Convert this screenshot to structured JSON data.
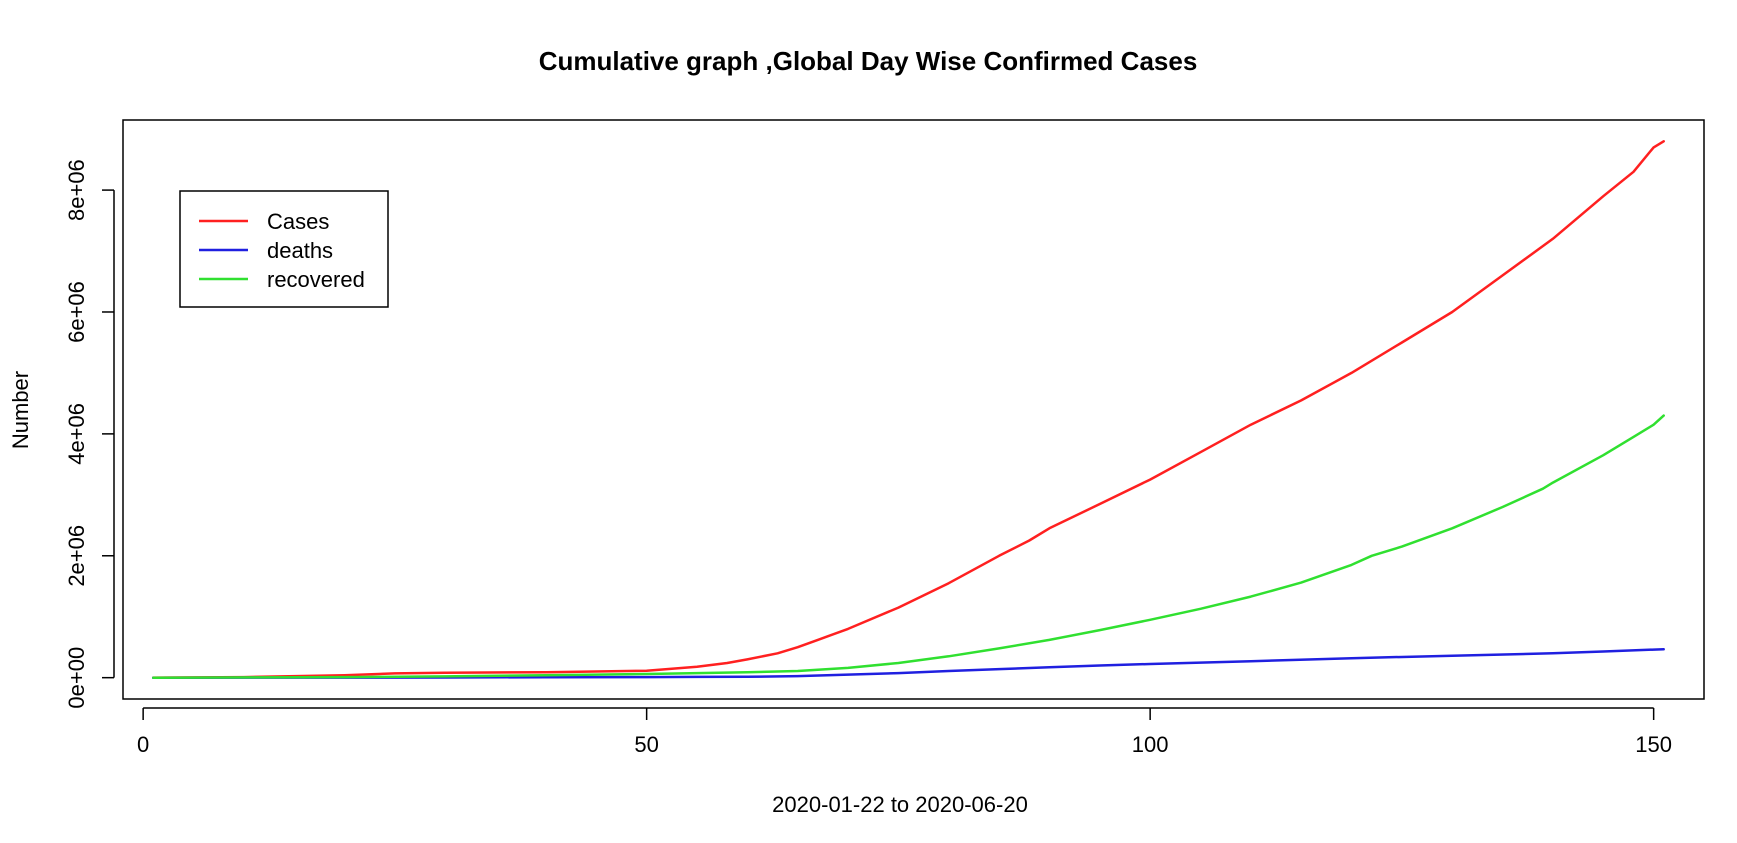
{
  "chart_data": {
    "type": "line",
    "title": "Cumulative graph ,Global Day Wise Confirmed Cases",
    "xlabel": "2020-01-22  to 2020-06-20",
    "ylabel": "Number",
    "xlim": [
      -2,
      155
    ],
    "ylim": [
      -350000,
      9150000
    ],
    "x_ticks": [
      0,
      50,
      100,
      150
    ],
    "x_tick_labels": [
      "0",
      "50",
      "100",
      "150"
    ],
    "y_ticks": [
      0,
      2000000,
      4000000,
      6000000,
      8000000
    ],
    "y_tick_labels": [
      "0e+00",
      "2e+06",
      "4e+06",
      "6e+06",
      "8e+06"
    ],
    "legend_position": "top-left",
    "grid": false,
    "series": [
      {
        "name": "Cases",
        "color": "#ff2020",
        "points": [
          [
            1,
            600
          ],
          [
            10,
            10000
          ],
          [
            20,
            40000
          ],
          [
            25,
            70000
          ],
          [
            30,
            80000
          ],
          [
            40,
            90000
          ],
          [
            50,
            115000
          ],
          [
            55,
            180000
          ],
          [
            58,
            240000
          ],
          [
            60,
            300000
          ],
          [
            63,
            400000
          ],
          [
            65,
            500000
          ],
          [
            67,
            620000
          ],
          [
            70,
            800000
          ],
          [
            75,
            1150000
          ],
          [
            80,
            1550000
          ],
          [
            85,
            2000000
          ],
          [
            88,
            2250000
          ],
          [
            90,
            2450000
          ],
          [
            95,
            2850000
          ],
          [
            100,
            3250000
          ],
          [
            105,
            3700000
          ],
          [
            110,
            4150000
          ],
          [
            115,
            4550000
          ],
          [
            120,
            5000000
          ],
          [
            125,
            5500000
          ],
          [
            130,
            6000000
          ],
          [
            135,
            6600000
          ],
          [
            140,
            7200000
          ],
          [
            145,
            7900000
          ],
          [
            148,
            8300000
          ],
          [
            150,
            8700000
          ],
          [
            151,
            8800000
          ]
        ]
      },
      {
        "name": "deaths",
        "color": "#2020e0",
        "points": [
          [
            1,
            17
          ],
          [
            20,
            1000
          ],
          [
            30,
            3000
          ],
          [
            40,
            7000
          ],
          [
            50,
            10000
          ],
          [
            55,
            12000
          ],
          [
            60,
            15000
          ],
          [
            65,
            25000
          ],
          [
            70,
            50000
          ],
          [
            75,
            75000
          ],
          [
            80,
            110000
          ],
          [
            85,
            140000
          ],
          [
            90,
            170000
          ],
          [
            95,
            200000
          ],
          [
            100,
            225000
          ],
          [
            110,
            270000
          ],
          [
            120,
            320000
          ],
          [
            130,
            360000
          ],
          [
            140,
            400000
          ],
          [
            145,
            430000
          ],
          [
            150,
            460000
          ],
          [
            151,
            465000
          ]
        ]
      },
      {
        "name": "recovered",
        "color": "#30e030",
        "points": [
          [
            1,
            30
          ],
          [
            20,
            10000
          ],
          [
            30,
            20000
          ],
          [
            40,
            40000
          ],
          [
            50,
            60000
          ],
          [
            55,
            75000
          ],
          [
            60,
            90000
          ],
          [
            65,
            110000
          ],
          [
            70,
            160000
          ],
          [
            75,
            240000
          ],
          [
            80,
            350000
          ],
          [
            85,
            480000
          ],
          [
            90,
            620000
          ],
          [
            95,
            780000
          ],
          [
            100,
            950000
          ],
          [
            105,
            1130000
          ],
          [
            110,
            1330000
          ],
          [
            115,
            1560000
          ],
          [
            120,
            1850000
          ],
          [
            122,
            2000000
          ],
          [
            125,
            2150000
          ],
          [
            130,
            2450000
          ],
          [
            135,
            2800000
          ],
          [
            139,
            3100000
          ],
          [
            140,
            3200000
          ],
          [
            145,
            3650000
          ],
          [
            148,
            3950000
          ],
          [
            150,
            4150000
          ],
          [
            151,
            4300000
          ]
        ]
      }
    ]
  }
}
